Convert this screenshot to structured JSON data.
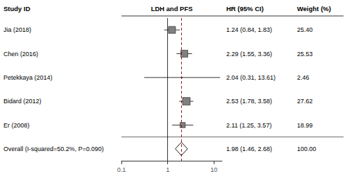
{
  "chart_data": {
    "type": "forest",
    "log": "x",
    "grid": false,
    "column_headers": [
      "Study ID",
      "LDH and PFS",
      "HR (95% CI)",
      "Weight (%)"
    ],
    "categories": [
      "Jia (2018)",
      "Chen (2016)",
      "Petekkaya (2014)",
      "Bidard (2012)",
      "Er (2008)",
      "Overall (I-squared=50.2%, P=0.090)"
    ],
    "values": [
      1.24,
      2.29,
      2.04,
      2.53,
      2.11,
      1.98
    ],
    "ci_low": [
      0.84,
      1.55,
      0.31,
      1.78,
      1.25,
      1.46
    ],
    "ci_high": [
      1.83,
      3.36,
      13.61,
      3.58,
      3.57,
      2.68
    ],
    "weights": [
      25.4,
      25.53,
      2.46,
      27.62,
      18.99,
      100.0
    ],
    "value_labels": [
      "1.24 (0.84, 1.83)",
      "2.29 (1.55, 3.36)",
      "2.04 (0.31, 13.61)",
      "2.53 (1.78, 3.58)",
      "2.11 (1.25, 3.57)",
      "1.98 (1.46, 2.68)"
    ],
    "weight_labels": [
      "25.40",
      "25.53",
      "2.46",
      "27.62",
      "18.99",
      "100.00"
    ],
    "overall": [
      false,
      false,
      false,
      false,
      false,
      true
    ],
    "xlim": [
      0.1,
      15
    ],
    "xticks": [
      0.1,
      1,
      10
    ],
    "ref_line": 1.0,
    "dashed_line": 1.98,
    "color": "#808080",
    "line_color": "#000000",
    "diamond_color": "#ffffff",
    "dashed_color": "#8b0000"
  }
}
